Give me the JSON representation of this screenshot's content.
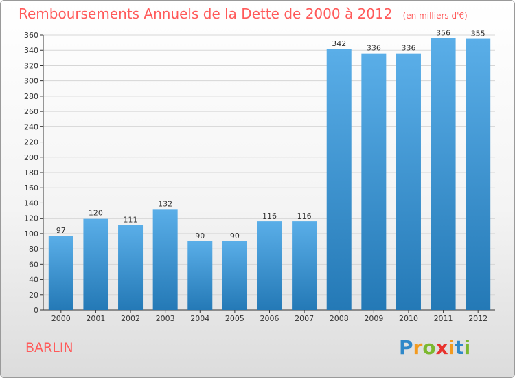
{
  "header": {
    "title": "Remboursements Annuels de la Dette de 2000 à 2012",
    "subtitle": "(en milliers d'€)"
  },
  "footer": {
    "city": "BARLIN",
    "logo": {
      "letters": [
        "P",
        "r",
        "o",
        "x",
        "i",
        "t",
        "i"
      ],
      "colors": [
        "#2f88c9",
        "#f39a1e",
        "#7cb82f",
        "#e8322d",
        "#f39a1e",
        "#2f88c9",
        "#7cb82f"
      ]
    }
  },
  "colors": {
    "bar_top": "#5aaee8",
    "bar_bottom": "#2479b6",
    "title": "#ff5a5a"
  },
  "chart_data": {
    "type": "bar",
    "categories": [
      "2000",
      "2001",
      "2002",
      "2003",
      "2004",
      "2005",
      "2006",
      "2007",
      "2008",
      "2009",
      "2010",
      "2011",
      "2012"
    ],
    "values": [
      97,
      120,
      111,
      132,
      90,
      90,
      116,
      116,
      342,
      336,
      336,
      356,
      355
    ],
    "data_labels": [
      "97",
      "120",
      "111",
      "132",
      "90",
      "90",
      "116",
      "116",
      "342",
      "336",
      "336",
      "356",
      "355"
    ],
    "yticks": [
      "0",
      "20",
      "40",
      "60",
      "80",
      "100",
      "120",
      "140",
      "160",
      "180",
      "200",
      "220",
      "240",
      "260",
      "280",
      "300",
      "320",
      "340",
      "360"
    ],
    "ylim": [
      0,
      360
    ],
    "grid": true,
    "legend": "none"
  }
}
